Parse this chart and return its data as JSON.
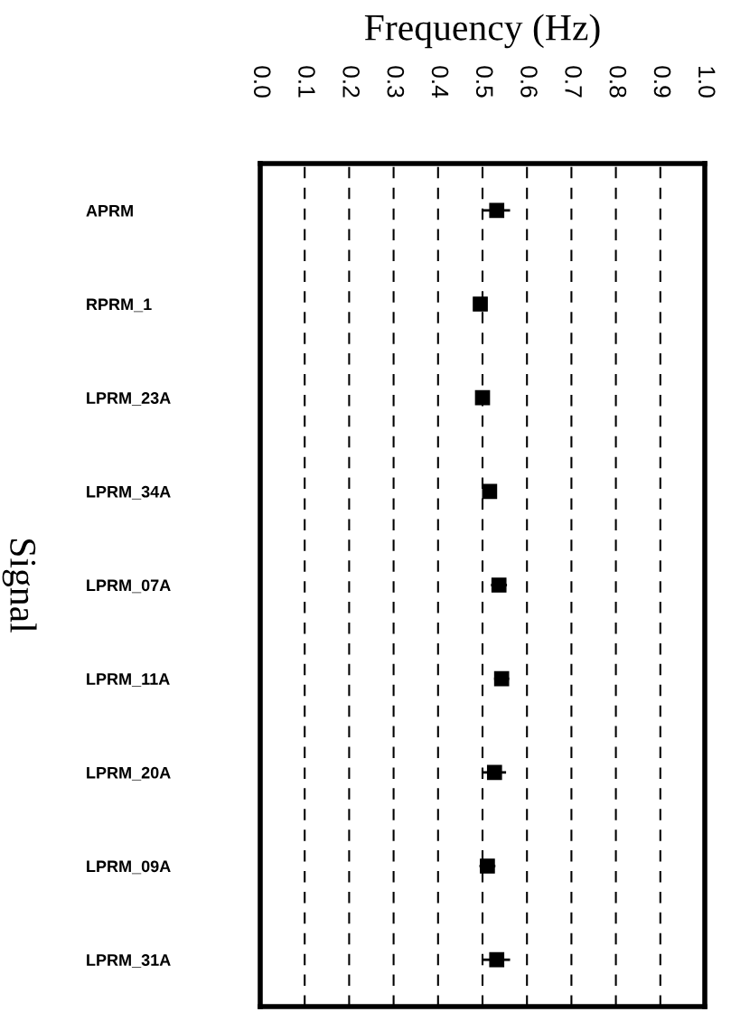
{
  "chart_data": {
    "type": "scatter",
    "orientation": "horizontal",
    "xlabel": "Frequency (Hz)",
    "ylabel": "Signal",
    "categories": [
      "APRM",
      "RPRM_1",
      "LPRM_23A",
      "LPRM_34A",
      "LPRM_07A",
      "LPRM_11A",
      "LPRM_20A",
      "LPRM_09A",
      "LPRM_31A"
    ],
    "values": [
      0.532,
      0.495,
      0.5,
      0.516,
      0.537,
      0.543,
      0.527,
      0.511,
      0.532
    ],
    "errors": [
      0.03,
      0.005,
      0.003,
      0.015,
      0.018,
      0.017,
      0.026,
      0.018,
      0.03
    ],
    "color": "#000000",
    "marker": "square",
    "grid": "x",
    "xlim": [
      0.0,
      1.0
    ],
    "xticks": [
      {
        "value": 0,
        "label": "0.0"
      },
      0.1,
      0.2,
      0.3,
      0.4,
      0.5,
      0.6,
      0.7,
      0.8,
      0.9,
      {
        "value": 1,
        "label": "1.0"
      }
    ]
  }
}
